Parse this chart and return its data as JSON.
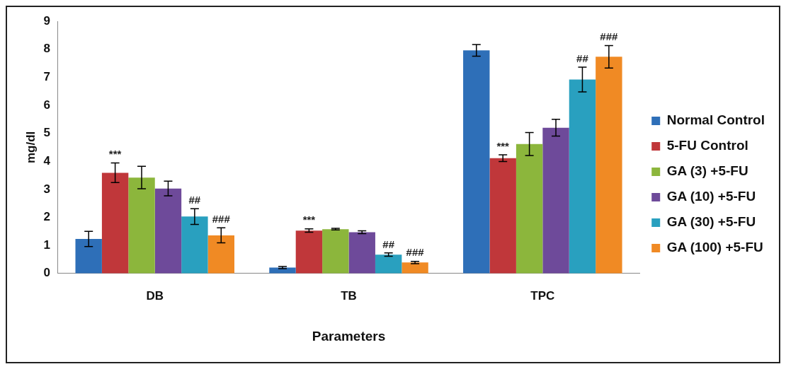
{
  "chart_data": {
    "type": "bar",
    "xlabel": "Parameters",
    "ylabel": "mg/dl",
    "categories": [
      "DB",
      "TB",
      "TPC"
    ],
    "ylim": [
      0,
      9
    ],
    "yticks": [
      0,
      1,
      2,
      3,
      4,
      5,
      6,
      7,
      8,
      9
    ],
    "grid": false,
    "legend": "right",
    "series": [
      {
        "name": "Normal Control",
        "color": "#2e6fb8",
        "values": [
          1.23,
          0.21,
          7.96
        ],
        "errors": [
          0.27,
          0.04,
          0.21
        ]
      },
      {
        "name": "5-FU Control",
        "color": "#c0373a",
        "values": [
          3.59,
          1.53,
          4.11
        ],
        "errors": [
          0.35,
          0.06,
          0.12
        ],
        "value_labels": [
          "***",
          "***",
          "***"
        ]
      },
      {
        "name": "GA (3) +5-FU",
        "color": "#8cb63c",
        "values": [
          3.42,
          1.58,
          4.62
        ],
        "errors": [
          0.4,
          0.03,
          0.41
        ]
      },
      {
        "name": "GA (10) +5-FU",
        "color": "#6e4a9a",
        "values": [
          3.03,
          1.47,
          5.2
        ],
        "errors": [
          0.26,
          0.05,
          0.3
        ]
      },
      {
        "name": "GA (30) +5-FU",
        "color": "#29a0bf",
        "values": [
          2.03,
          0.67,
          6.92
        ],
        "errors": [
          0.28,
          0.06,
          0.44
        ],
        "value_labels": [
          "##",
          "##",
          "##"
        ]
      },
      {
        "name": "GA (100) +5-FU",
        "color": "#f08a24",
        "values": [
          1.36,
          0.39,
          7.73
        ],
        "errors": [
          0.27,
          0.04,
          0.4
        ],
        "value_labels": [
          "###",
          "###",
          "###"
        ]
      }
    ]
  }
}
